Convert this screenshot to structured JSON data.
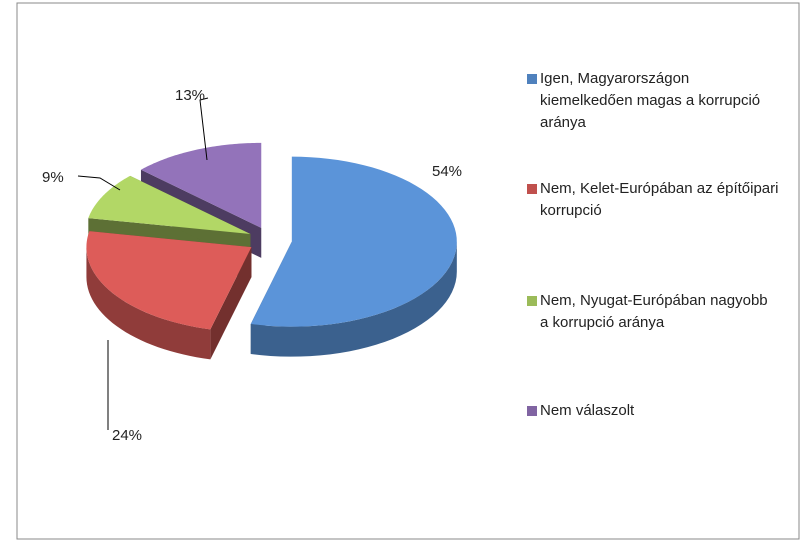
{
  "chart_data": {
    "type": "pie",
    "categories": [
      "Igen, Magyarországon kiemelkedően magas a korrupció aránya",
      "Nem, Kelet-Európában az építőipari korrupció",
      "Nem, Nyugat-Európában nagyobb a korrupció aránya",
      "Nem válaszolt"
    ],
    "values": [
      54,
      24,
      9,
      13
    ],
    "value_labels": [
      "54%",
      "24%",
      "9%",
      "13%"
    ],
    "colors": [
      "#4f81bd",
      "#c0504d",
      "#9bbb59",
      "#8064a2"
    ],
    "legend": "right"
  }
}
